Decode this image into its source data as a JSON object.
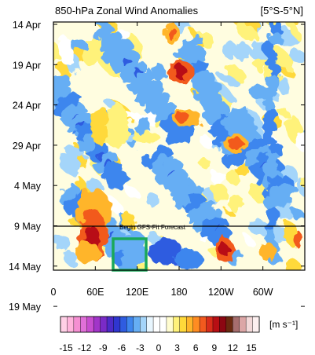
{
  "chart_data": {
    "type": "heatmap",
    "title": "850-hPa Zonal Wind Anomalies",
    "region_label": "[5°S-5°N]",
    "annotation": "Begin GFS-Fit Forecast",
    "forecast_start": "14 May",
    "y_ticks": [
      "14 Apr",
      "19 Apr",
      "24 Apr",
      "29 Apr",
      "4 May",
      "9 May",
      "14 May",
      "19 May"
    ],
    "x_ticks": [
      "0",
      "60E",
      "120E",
      "180",
      "120W",
      "60W"
    ],
    "x_tick_longitudes": [
      0,
      60,
      120,
      180,
      240,
      300
    ],
    "x_range_deg": [
      0,
      360
    ],
    "colorbar": {
      "unit_label": "[m s⁻¹]",
      "tick_labels": [
        "-15",
        "-12",
        "-9",
        "-6",
        "-3",
        "0",
        "3",
        "6",
        "9",
        "12",
        "15"
      ],
      "colors": [
        "#ffd0e6",
        "#ffb4dc",
        "#f58fd2",
        "#e070d8",
        "#c84ed0",
        "#a235c9",
        "#7a2bc7",
        "#4d2bc8",
        "#2f36d0",
        "#2f5ce0",
        "#3e86ee",
        "#66aef4",
        "#a4d5fa",
        "#e8f6fe",
        "#ffffff",
        "#ffffff",
        "#fffcd0",
        "#fff27a",
        "#ffd93a",
        "#ffb52a",
        "#ff8c22",
        "#f25a1e",
        "#d92d1a",
        "#b80f14",
        "#8c0712",
        "#6b2a10",
        "#a66e6e",
        "#dca6a6",
        "#f3d9d9",
        "#fdf0f0"
      ]
    },
    "box_color": "#1aa85a",
    "box_extent": {
      "lon": [
        85,
        135
      ],
      "time": "after 14 May"
    },
    "grid": false
  }
}
